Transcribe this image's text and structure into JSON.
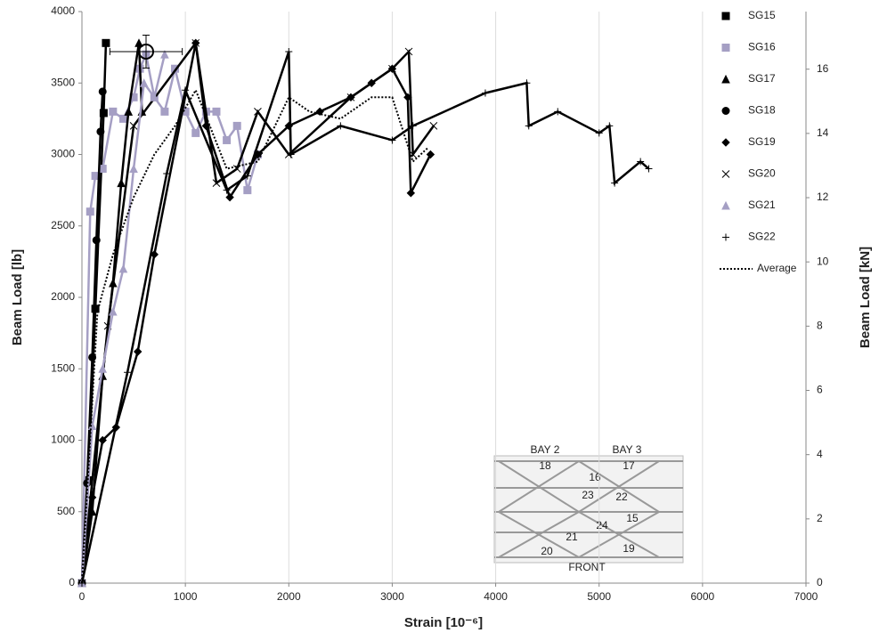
{
  "chart_data": {
    "type": "line",
    "x_label": "Strain [10⁻⁶]",
    "y_label": "Beam Load [lb]",
    "y2_label": "Beam Load [kN]",
    "xlim": [
      0,
      7000
    ],
    "xticks": [
      0,
      1000,
      2000,
      3000,
      4000,
      5000,
      6000,
      7000
    ],
    "ylim": [
      0,
      4000
    ],
    "yticks": [
      0,
      500,
      1000,
      1500,
      2000,
      2500,
      3000,
      3500,
      4000
    ],
    "y2lim": [
      0,
      17.793
    ],
    "y2ticks": [
      0,
      2,
      4,
      6,
      8,
      10,
      12,
      14,
      16
    ],
    "grid": "x",
    "legend": "upper right",
    "series": [
      {
        "name": "SG15",
        "color": "#000000",
        "marker": "square",
        "linestyle": "solid",
        "x": [
          0,
          60,
          130,
          210,
          232
        ],
        "values": [
          0,
          720,
          1920,
          3290,
          3780
        ]
      },
      {
        "name": "SG16",
        "color": "#a59fc4",
        "marker": "square",
        "linestyle": "solid",
        "x": [
          0,
          80,
          130,
          200,
          300,
          400,
          500,
          560,
          620,
          700,
          800,
          900,
          1000,
          1100,
          1200,
          1300,
          1400,
          1500,
          1600,
          1700
        ],
        "values": [
          0,
          2600,
          2850,
          2900,
          3300,
          3250,
          3400,
          3600,
          3700,
          3400,
          3300,
          3600,
          3300,
          3150,
          3300,
          3300,
          3100,
          3200,
          2750,
          3000
        ]
      },
      {
        "name": "SG17",
        "color": "#000000",
        "marker": "triangle",
        "linestyle": "solid",
        "x": [
          0,
          100,
          200,
          300,
          380,
          450,
          551,
          580
        ],
        "values": [
          0,
          500,
          1450,
          2100,
          2800,
          3300,
          3780,
          3300
        ]
      },
      {
        "name": "SG18",
        "color": "#000000",
        "marker": "circle",
        "linestyle": "solid",
        "x": [
          0,
          50,
          100,
          140,
          180,
          200
        ],
        "values": [
          0,
          700,
          1580,
          2400,
          3160,
          3440
        ]
      },
      {
        "name": "SG19",
        "color": "#000000",
        "marker": "diamond",
        "linestyle": "solid",
        "x": [
          0,
          100,
          200,
          330,
          540,
          700,
          1100,
          1200,
          1430,
          1700,
          2000,
          2300,
          2600,
          2800,
          3000,
          3150,
          3180,
          3370
        ],
        "values": [
          0,
          600,
          1000,
          1090,
          1620,
          2300,
          3780,
          3200,
          2700,
          3000,
          3200,
          3300,
          3400,
          3500,
          3600,
          3400,
          2730,
          3000
        ]
      },
      {
        "name": "SG20",
        "color": "#000000",
        "marker": "x",
        "linestyle": "solid",
        "x": [
          0,
          250,
          500,
          1100,
          1300,
          1500,
          1700,
          2000,
          2600,
          3000,
          3160,
          3200,
          3400
        ],
        "values": [
          0,
          1800,
          3200,
          3780,
          2800,
          2900,
          3300,
          3000,
          3400,
          3600,
          3720,
          3000,
          3200
        ]
      },
      {
        "name": "SG21",
        "color": "#a59fc4",
        "marker": "triangle",
        "linestyle": "solid",
        "x": [
          0,
          100,
          200,
          300,
          400,
          500,
          600,
          700,
          800
        ],
        "values": [
          0,
          1100,
          1500,
          1900,
          2200,
          2900,
          3500,
          3400,
          3700
        ]
      },
      {
        "name": "SG22",
        "color": "#000000",
        "marker": "plus",
        "linestyle": "solid",
        "x": [
          0,
          440,
          820,
          1000,
          1400,
          1600,
          2000,
          2020,
          2500,
          3000,
          3200,
          3900,
          4300,
          4320,
          4600,
          5000,
          5100,
          5150,
          5400,
          5480
        ],
        "values": [
          0,
          1475,
          2866,
          3450,
          2750,
          2850,
          3720,
          3000,
          3200,
          3100,
          3200,
          3430,
          3500,
          3200,
          3300,
          3150,
          3200,
          2800,
          2950,
          2900
        ]
      },
      {
        "name": "Average",
        "color": "#000000",
        "marker": "none",
        "linestyle": "dotted",
        "x": [
          0,
          150,
          300,
          500,
          700,
          900,
          1100,
          1400,
          1700,
          2000,
          2200,
          2500,
          2800,
          3000,
          3200,
          3350
        ],
        "values": [
          0,
          1900,
          2300,
          2700,
          3000,
          3200,
          3450,
          2900,
          2950,
          3400,
          3300,
          3250,
          3400,
          3400,
          2950,
          3050
        ]
      }
    ],
    "highlight": {
      "x": 620,
      "y": 3720,
      "xerr": 350,
      "yerr": 115
    }
  },
  "inset": {
    "labels": [
      "BAY 2",
      "BAY 3",
      "18",
      "17",
      "16",
      "23",
      "22",
      "15",
      "24",
      "21",
      "20",
      "19",
      "FRONT"
    ]
  }
}
